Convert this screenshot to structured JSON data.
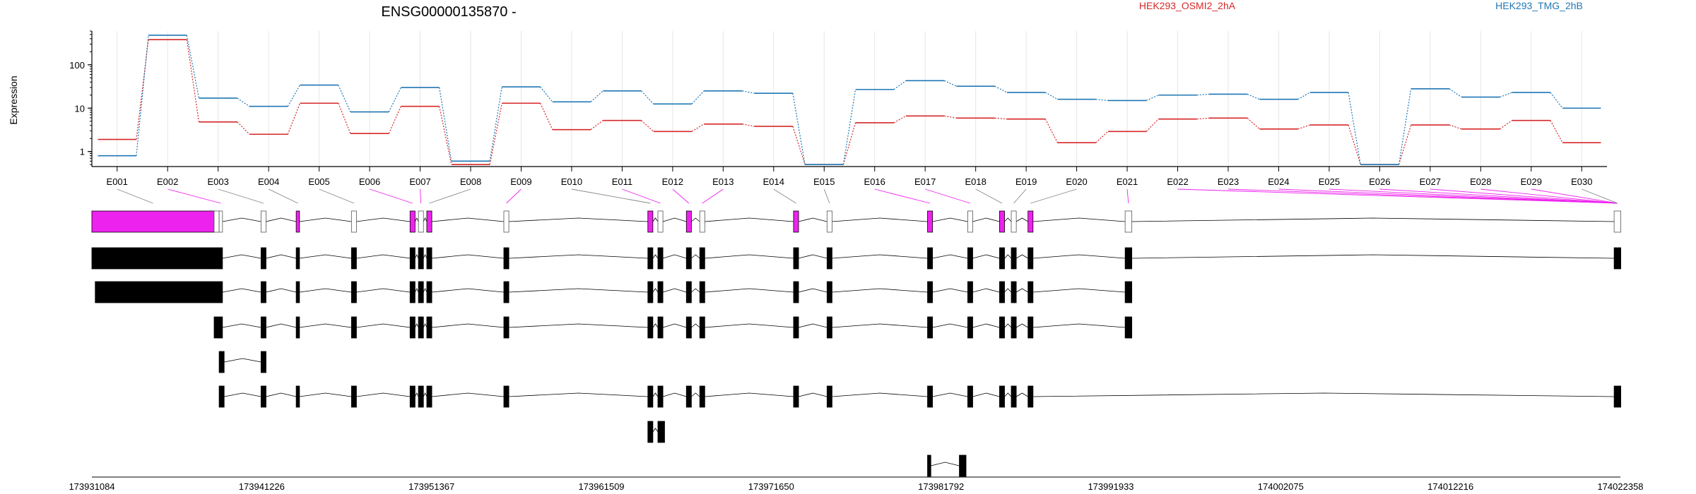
{
  "chart_data": {
    "type": "line",
    "title": "ENSG00000135870 -",
    "ylabel": "Expression",
    "xlabel": "",
    "yscale": "log",
    "ylim": [
      0.45,
      600
    ],
    "y_ticks": [
      1,
      10,
      100
    ],
    "y_tick_labels": [
      "1",
      "10",
      "100"
    ],
    "grid": "vertical",
    "legend_position": "top-right",
    "colors": {
      "HEK293_OSMI2_2hA": "#d62728",
      "HEK293_TMG_2hB": "#1f77b4",
      "highlight": "#ee22ee",
      "structure": "#000000"
    },
    "categories": [
      "E001",
      "E002",
      "E003",
      "E004",
      "E005",
      "E006",
      "E007",
      "E008",
      "E009",
      "E010",
      "E011",
      "E012",
      "E013",
      "E014",
      "E015",
      "E016",
      "E017",
      "E018",
      "E019",
      "E020",
      "E021",
      "E022",
      "E023",
      "E024",
      "E025",
      "E026",
      "E027",
      "E028",
      "E029",
      "E030"
    ],
    "series": [
      {
        "name": "HEK293_OSMI2_2hA",
        "color": "#d62728",
        "values": [
          1.9,
          380,
          4.8,
          2.5,
          13,
          2.6,
          11,
          0.5,
          13,
          3.2,
          5.2,
          2.9,
          4.3,
          3.8,
          0.5,
          4.6,
          6.6,
          5.9,
          5.6,
          1.6,
          2.9,
          5.6,
          5.9,
          3.3,
          4.1,
          0.5,
          4.1,
          3.3,
          5.2,
          1.6
        ]
      },
      {
        "name": "HEK293_TMG_2hB",
        "color": "#1f77b4",
        "values": [
          0.8,
          480,
          17,
          11,
          34,
          8.2,
          30,
          0.6,
          31,
          14,
          25,
          12.5,
          25,
          22,
          0.5,
          27,
          43,
          32,
          23,
          16,
          15,
          20,
          21,
          16,
          23,
          0.5,
          28,
          18,
          23,
          10
        ]
      }
    ],
    "genomic_coordinates": [
      "173931084",
      "173941226",
      "173951367",
      "173961509",
      "173971650",
      "173981792",
      "173991933",
      "174002075",
      "174012216",
      "174022358"
    ],
    "highlighted_exons": [
      "E002",
      "E006",
      "E007",
      "E009",
      "E011",
      "E012",
      "E013",
      "E016",
      "E017",
      "E021",
      "E022",
      "E023",
      "E024",
      "E025",
      "E026",
      "E027",
      "E028",
      "E029"
    ]
  }
}
